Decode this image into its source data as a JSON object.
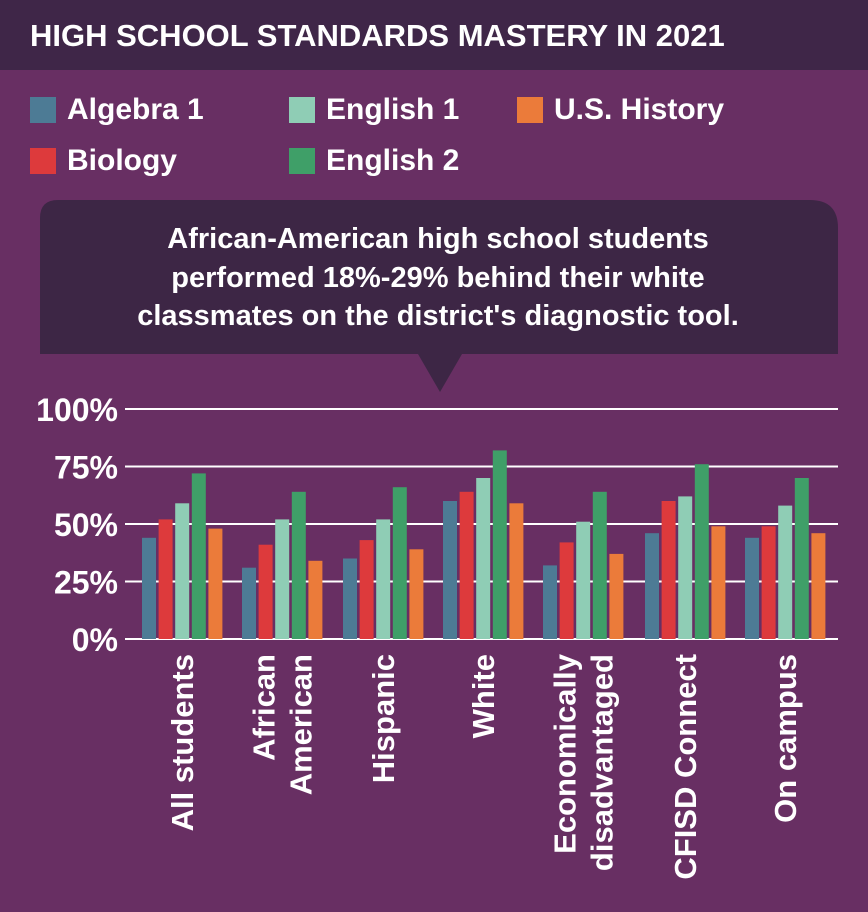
{
  "colors": {
    "background": "#682f63",
    "header": "#3f2648",
    "callout": "#3d2645",
    "gridline": "#ffffff",
    "text": "#ffffff"
  },
  "chart_data": {
    "type": "bar",
    "title": "HIGH SCHOOL STANDARDS MASTERY IN 2021",
    "annotation": [
      "African-American high school students",
      "performed 18%-29% behind their white",
      "classmates on the district's diagnostic tool."
    ],
    "categories": [
      [
        "All students"
      ],
      [
        "African",
        "American"
      ],
      [
        "Hispanic"
      ],
      [
        "White"
      ],
      [
        "Economically",
        "disadvantaged"
      ],
      [
        "CFISD Connect"
      ],
      [
        "On campus"
      ]
    ],
    "series": [
      {
        "name": "Algebra 1",
        "color": "#4d7b95",
        "values": [
          44,
          31,
          35,
          60,
          32,
          46,
          44
        ]
      },
      {
        "name": "Biology",
        "color": "#dd3a3c",
        "values": [
          52,
          41,
          43,
          64,
          42,
          60,
          49
        ]
      },
      {
        "name": "English 1",
        "color": "#8fcdb5",
        "values": [
          59,
          52,
          52,
          70,
          51,
          62,
          58
        ]
      },
      {
        "name": "English 2",
        "color": "#3f9f68",
        "values": [
          72,
          64,
          66,
          82,
          64,
          76,
          70
        ]
      },
      {
        "name": "U.S. History",
        "color": "#eb7b3a",
        "values": [
          48,
          34,
          39,
          59,
          37,
          49,
          46
        ]
      }
    ],
    "yticks": [
      "0%",
      "25%",
      "50%",
      "75%",
      "100%"
    ],
    "ytick_values": [
      0,
      25,
      50,
      75,
      100
    ],
    "ylim": [
      0,
      100
    ],
    "grid": true,
    "legend": "top"
  }
}
